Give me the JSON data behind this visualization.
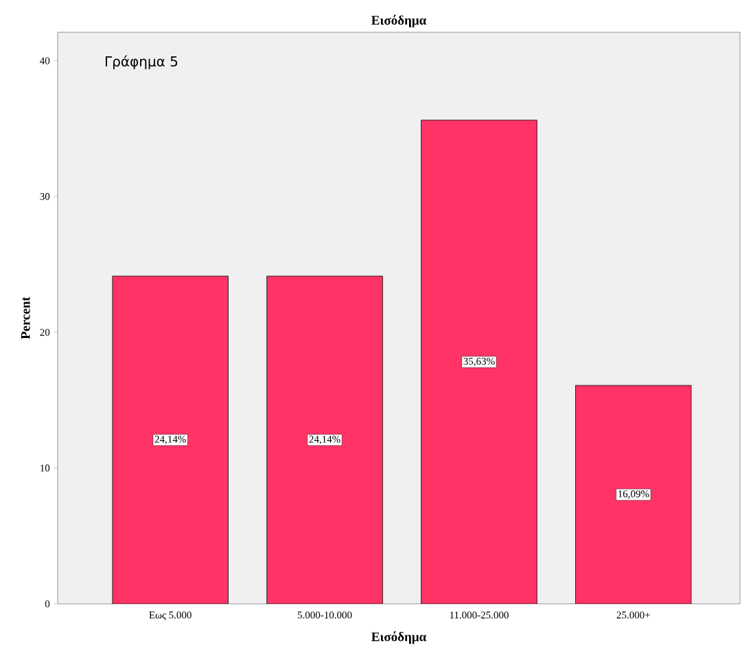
{
  "chart_data": {
    "type": "bar",
    "title": "Εισόδημα",
    "xlabel": "Εισόδημα",
    "ylabel": "Percent",
    "annotations": [
      "Γράφημα 5"
    ],
    "categories": [
      "Εως 5.000",
      "5.000-10.000",
      "11.000-25.000",
      "25.000+"
    ],
    "values": [
      24.14,
      24.14,
      35.63,
      16.09
    ],
    "value_labels": [
      "24,14%",
      "24,14%",
      "35,63%",
      "16,09%"
    ],
    "color": "#ff3366",
    "ylim": [
      0,
      42.1
    ],
    "yticks": [
      0,
      10,
      20,
      30,
      40
    ],
    "grid": false
  }
}
